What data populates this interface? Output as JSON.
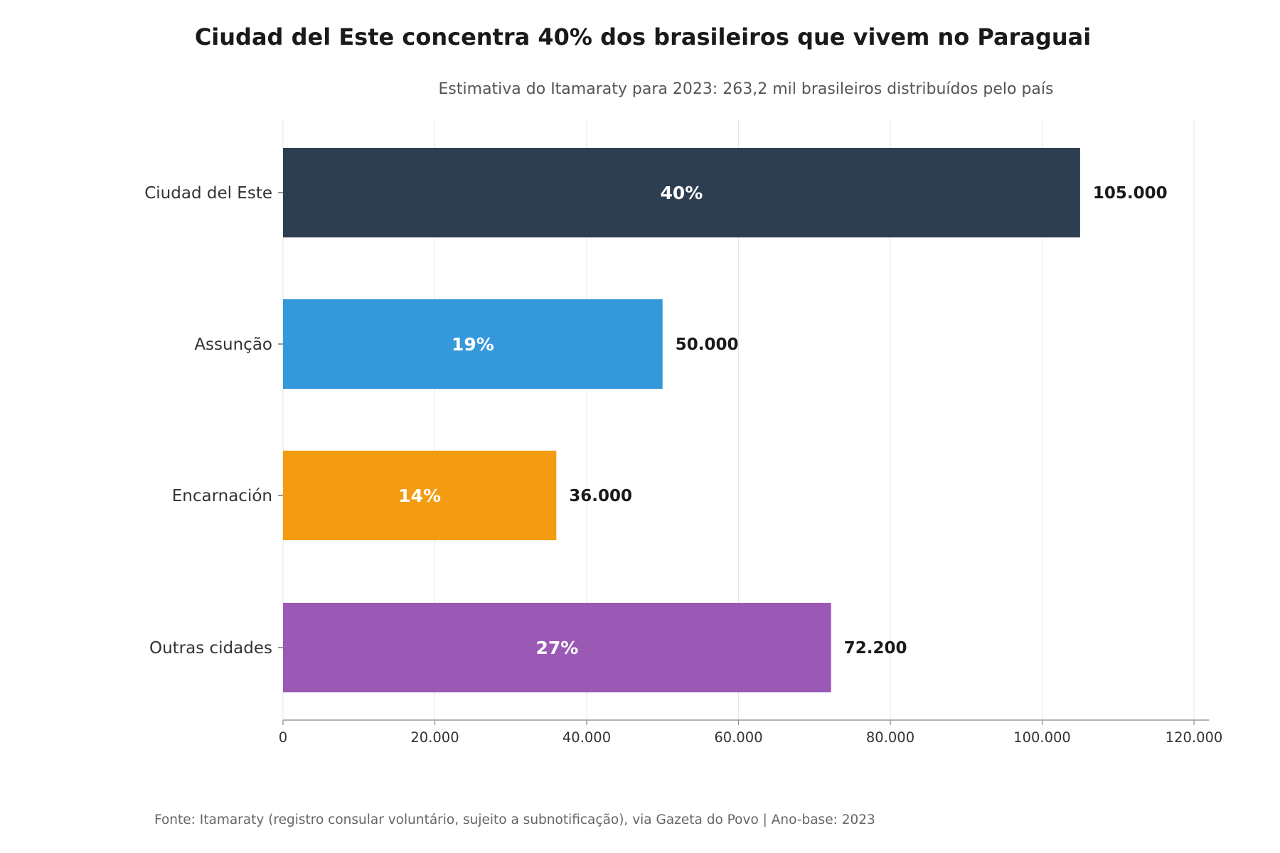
{
  "chart_data": {
    "type": "bar",
    "orientation": "horizontal",
    "title": "Ciudad del Este concentra 40% dos brasileiros que vivem no Paraguai",
    "subtitle": "Estimativa do Itamaraty para 2023: 263,2 mil brasileiros distribuídos pelo país",
    "categories": [
      "Ciudad del Este",
      "Assunção",
      "Encarnación",
      "Outras cidades"
    ],
    "values": [
      105000,
      50000,
      36000,
      72200
    ],
    "value_labels": [
      "105.000",
      "50.000",
      "36.000",
      "72.200"
    ],
    "percent_labels": [
      "40%",
      "19%",
      "14%",
      "27%"
    ],
    "colors": [
      "#2d3e50",
      "#3598db",
      "#f39c12",
      "#9b59b6"
    ],
    "xlim": [
      0,
      122000
    ],
    "xticks": [
      0,
      20000,
      40000,
      60000,
      80000,
      100000,
      120000
    ],
    "xtick_labels": [
      "0",
      "20.000",
      "40.000",
      "60.000",
      "80.000",
      "100.000",
      "120.000"
    ],
    "xlabel": "",
    "ylabel": "",
    "grid": "vertical",
    "legend": "none",
    "footer": "Fonte: Itamaraty (registro consular voluntário, sujeito a subnotificação), via Gazeta do Povo | Ano-base: 2023"
  }
}
